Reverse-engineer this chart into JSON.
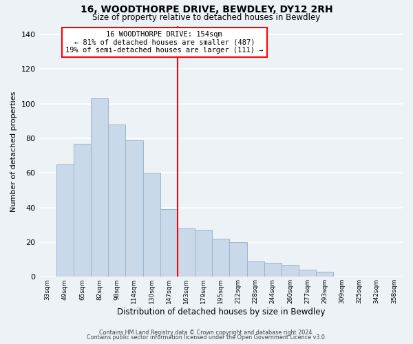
{
  "title": "16, WOODTHORPE DRIVE, BEWDLEY, DY12 2RH",
  "subtitle": "Size of property relative to detached houses in Bewdley",
  "xlabel": "Distribution of detached houses by size in Bewdley",
  "ylabel": "Number of detached properties",
  "bar_labels": [
    "33sqm",
    "49sqm",
    "65sqm",
    "82sqm",
    "98sqm",
    "114sqm",
    "130sqm",
    "147sqm",
    "163sqm",
    "179sqm",
    "195sqm",
    "212sqm",
    "228sqm",
    "244sqm",
    "260sqm",
    "277sqm",
    "293sqm",
    "309sqm",
    "325sqm",
    "342sqm",
    "358sqm"
  ],
  "bar_values": [
    0,
    65,
    77,
    103,
    88,
    79,
    60,
    39,
    28,
    27,
    22,
    20,
    9,
    8,
    7,
    4,
    3,
    0,
    0,
    0,
    0
  ],
  "bar_color": "#cad9ea",
  "bar_edge_color": "#9ab5cc",
  "vline_x": 7.5,
  "vline_color": "red",
  "annotation_title": "16 WOODTHORPE DRIVE: 154sqm",
  "annotation_line1": "← 81% of detached houses are smaller (487)",
  "annotation_line2": "19% of semi-detached houses are larger (111) →",
  "annotation_box_color": "white",
  "annotation_box_edge": "red",
  "ylim": [
    0,
    145
  ],
  "yticks": [
    0,
    20,
    40,
    60,
    80,
    100,
    120,
    140
  ],
  "footer1": "Contains HM Land Registry data © Crown copyright and database right 2024.",
  "footer2": "Contains public sector information licensed under the Open Government Licence v3.0.",
  "background_color": "#edf2f7",
  "grid_color": "white"
}
